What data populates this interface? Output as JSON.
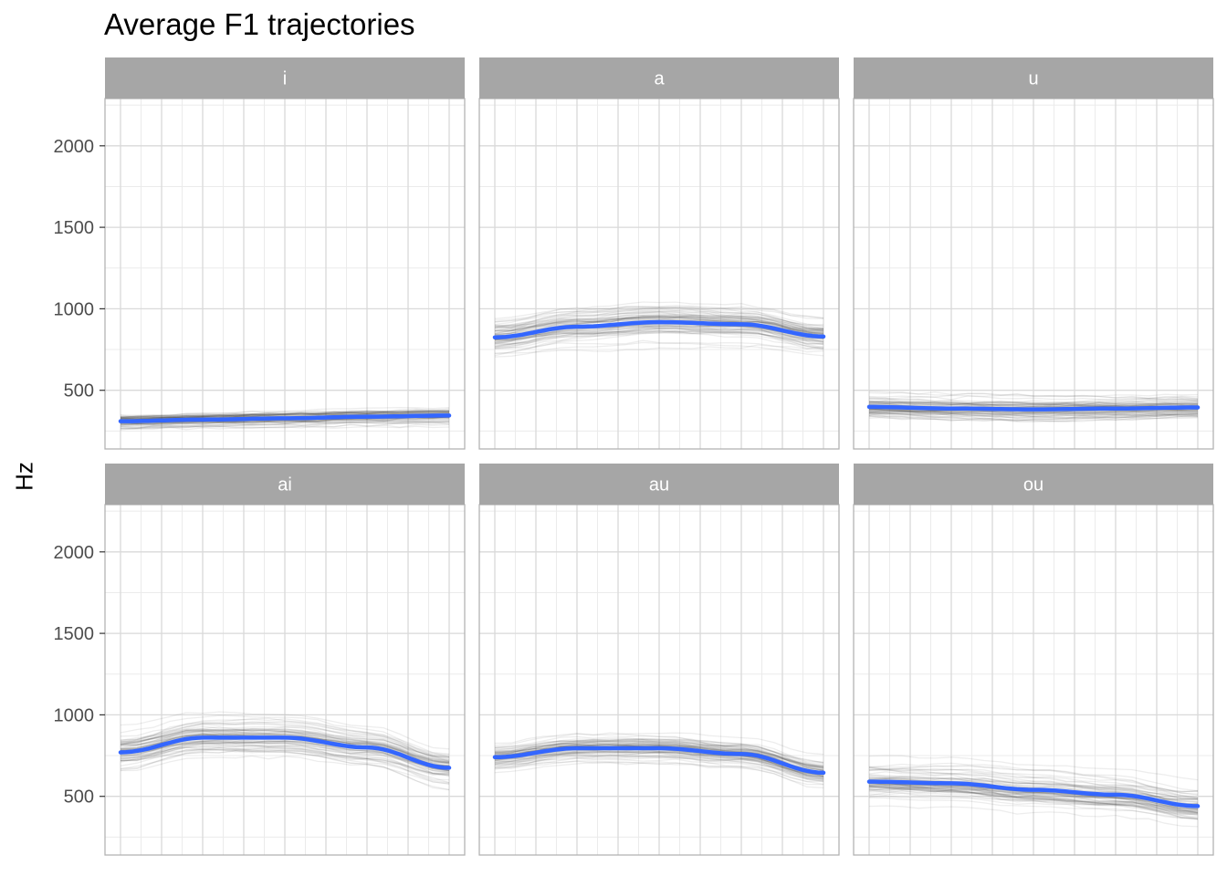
{
  "chart_data": {
    "type": "line",
    "title": "Average F1 trajectories",
    "ylabel": "Hz",
    "xlabel": "",
    "ylim": [
      140,
      2290
    ],
    "y_ticks": [
      500,
      1000,
      1500,
      2000
    ],
    "x_ticks_shown": false,
    "grid": true,
    "colors": {
      "mean_line": "#3366ff",
      "token_lines": "#333333",
      "strip_background": "#a6a6a6",
      "panel_border": "#b3b3b3",
      "grid_major": "#d9d9d9",
      "grid_minor": "#ebebeb"
    },
    "panels": [
      {
        "label": "i",
        "x": [
          0,
          0.25,
          0.5,
          0.75,
          1.0
        ],
        "mean": [
          310,
          320,
          328,
          338,
          345
        ],
        "token_spread": 30
      },
      {
        "label": "a",
        "x": [
          0,
          0.25,
          0.5,
          0.75,
          1.0
        ],
        "mean": [
          825,
          890,
          918,
          905,
          830
        ],
        "token_spread": 75
      },
      {
        "label": "u",
        "x": [
          0,
          0.25,
          0.5,
          0.75,
          1.0
        ],
        "mean": [
          398,
          388,
          383,
          388,
          395
        ],
        "token_spread": 45
      },
      {
        "label": "ai",
        "x": [
          0,
          0.25,
          0.5,
          0.75,
          1.0
        ],
        "mean": [
          770,
          860,
          860,
          800,
          675
        ],
        "token_spread": 60
      },
      {
        "label": "au",
        "x": [
          0,
          0.25,
          0.5,
          0.75,
          1.0
        ],
        "mean": [
          740,
          795,
          795,
          760,
          645
        ],
        "token_spread": 55
      },
      {
        "label": "ou",
        "x": [
          0,
          0.25,
          0.5,
          0.75,
          1.0
        ],
        "mean": [
          590,
          580,
          540,
          510,
          440
        ],
        "token_spread": 65
      }
    ]
  }
}
